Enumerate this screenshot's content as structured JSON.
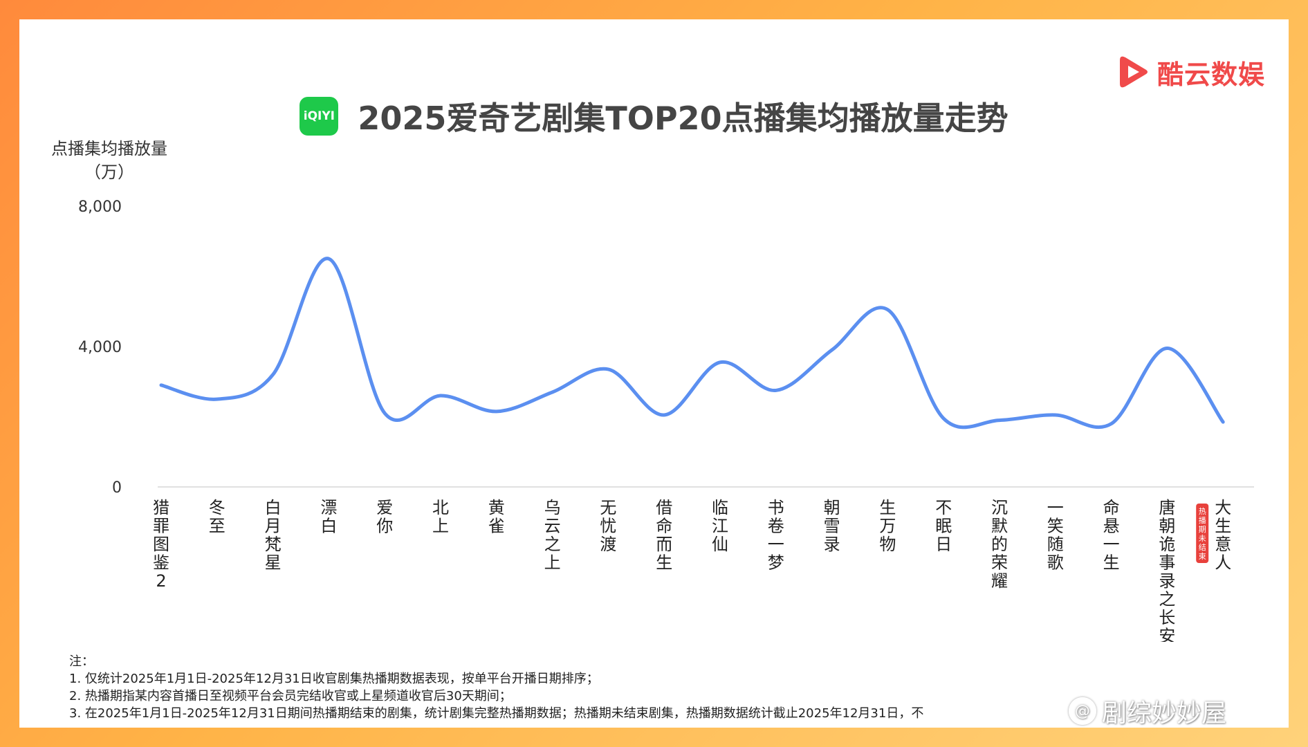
{
  "brand": {
    "name": "酷云数娱",
    "color": "#f04a4a"
  },
  "platform": {
    "badge": "iQIYI",
    "color": "#1ec94a"
  },
  "header": {
    "title": "2025爱奇艺剧集TOP20点播集均播放量走势"
  },
  "chart_data": {
    "type": "line",
    "title": "2025爱奇艺剧集TOP20点播集均播放量走势",
    "ylabel": "点播集均播放量（万）",
    "xlabel": "",
    "ylim": [
      0,
      8000
    ],
    "yticks": [
      "8,000",
      "4,000",
      "0"
    ],
    "ytick_values": [
      8000,
      4000,
      0
    ],
    "grid": false,
    "line_color": "#5b8ff0",
    "categories": [
      "猎罪图鉴2",
      "冬至",
      "白月梵星",
      "漂白",
      "爱你",
      "北上",
      "黄雀",
      "乌云之上",
      "无忧渡",
      "借命而生",
      "临江仙",
      "书卷一梦",
      "朝雪录",
      "生万物",
      "不眠日",
      "沉默的荣耀",
      "一笑随歌",
      "命悬一生",
      "唐朝诡事录之长安",
      "大生意人"
    ],
    "series": [
      {
        "values": [
          2900,
          2500,
          3200,
          6500,
          2100,
          2600,
          2150,
          2700,
          3350,
          2050,
          3550,
          2750,
          3900,
          5050,
          1950,
          1900,
          2050,
          1800,
          3950,
          1850
        ]
      }
    ],
    "annotations": [
      {
        "category": "大生意人",
        "tag": "热播期未结束",
        "color": "#e8413c"
      }
    ]
  },
  "notes": {
    "heading": "注：",
    "lines": [
      "1. 仅统计2025年1月1日-2025年12月31日收官剧集热播期数据表现，按单平台开播日期排序；",
      "2. 热播期指某内容首播日至视频平台会员完结收官或上星频道收官后30天期间；",
      "3. 在2025年1月1日-2025年12月31日期间热播期结束的剧集，统计剧集完整热播期数据；热播期未结束剧集，热播期数据统计截止2025年12月31日，不"
    ]
  },
  "watermark": {
    "icon": "at-icon",
    "text": "剧综妙妙屋"
  }
}
